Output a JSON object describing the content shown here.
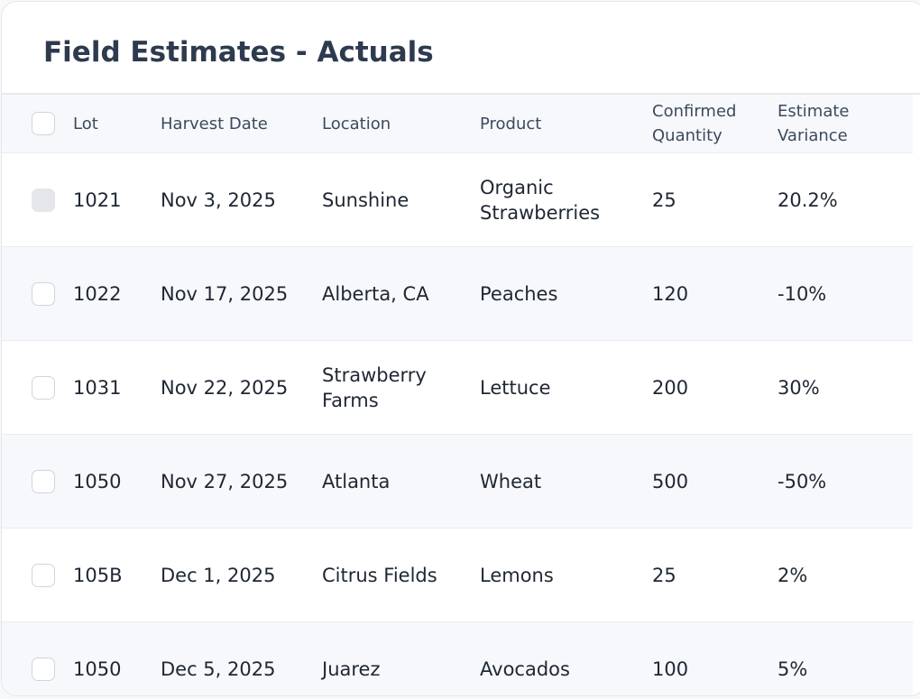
{
  "card": {
    "title": "Field Estimates - Actuals"
  },
  "table": {
    "headers": {
      "lot": "Lot",
      "harvest_date": "Harvest Date",
      "location": "Location",
      "product": "Product",
      "confirmed_quantity": [
        "Confirmed",
        "Quantity"
      ],
      "estimate_variance": [
        "Estimate",
        "Variance"
      ]
    },
    "rows": [
      {
        "lot": "1021",
        "harvest_date": "Nov 3, 2025",
        "location": [
          "Sunshine"
        ],
        "product": [
          "Organic",
          "Strawberries"
        ],
        "confirmed_quantity": "25",
        "estimate_variance": "20.2%",
        "checkbox_disabled": true
      },
      {
        "lot": "1022",
        "harvest_date": "Nov 17, 2025",
        "location": [
          "Alberta, CA"
        ],
        "product": [
          "Peaches"
        ],
        "confirmed_quantity": "120",
        "estimate_variance": "-10%",
        "checkbox_disabled": false
      },
      {
        "lot": "1031",
        "harvest_date": "Nov 22, 2025",
        "location": [
          "Strawberry",
          "Farms"
        ],
        "product": [
          "Lettuce"
        ],
        "confirmed_quantity": "200",
        "estimate_variance": "30%",
        "checkbox_disabled": false
      },
      {
        "lot": "1050",
        "harvest_date": "Nov 27, 2025",
        "location": [
          "Atlanta"
        ],
        "product": [
          "Wheat"
        ],
        "confirmed_quantity": "500",
        "estimate_variance": "-50%",
        "checkbox_disabled": false
      },
      {
        "lot": "105B",
        "harvest_date": "Dec 1, 2025",
        "location": [
          "Citrus Fields"
        ],
        "product": [
          "Lemons"
        ],
        "confirmed_quantity": "25",
        "estimate_variance": "2%",
        "checkbox_disabled": false
      },
      {
        "lot": "1050",
        "harvest_date": "Dec 5, 2025",
        "location": [
          "Juarez"
        ],
        "product": [
          "Avocados"
        ],
        "confirmed_quantity": "100",
        "estimate_variance": "5%",
        "checkbox_disabled": false
      }
    ]
  },
  "colors": {
    "title": "#2e3a4e",
    "header_text": "#3d4a5c",
    "cell_text": "#1f2733",
    "alt_row_bg": "#f6f8fb",
    "border": "#e9ecf0",
    "checkbox_border": "#cfd5dd",
    "checkbox_disabled": "#e4e6e9"
  }
}
